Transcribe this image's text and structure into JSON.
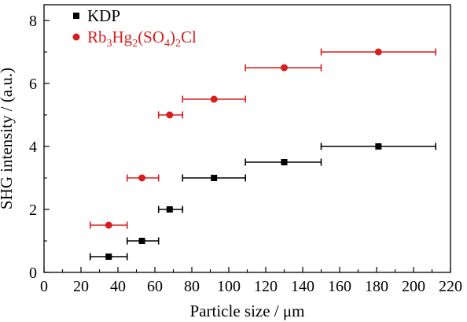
{
  "chart_data": {
    "type": "scatter",
    "xlabel": "Particle size / μm",
    "ylabel": "SHG intensity / (a.u.)",
    "xlim": [
      0,
      220
    ],
    "ylim": [
      0,
      8.5
    ],
    "x_ticks": [
      "0",
      "20",
      "40",
      "60",
      "80",
      "100",
      "120",
      "140",
      "160",
      "180",
      "200",
      "220"
    ],
    "y_ticks": [
      "0",
      "2",
      "4",
      "6",
      "8"
    ],
    "legend_position": "top-left",
    "grid": false,
    "series": [
      {
        "name": "KDP",
        "marker": "square",
        "color": "#000000",
        "points": [
          {
            "x": 35,
            "y": 0.5,
            "xmin": 25,
            "xmax": 45
          },
          {
            "x": 53,
            "y": 1.0,
            "xmin": 45,
            "xmax": 62
          },
          {
            "x": 68,
            "y": 2.0,
            "xmin": 62,
            "xmax": 75
          },
          {
            "x": 92,
            "y": 3.0,
            "xmin": 75,
            "xmax": 109
          },
          {
            "x": 130,
            "y": 3.5,
            "xmin": 109,
            "xmax": 150
          },
          {
            "x": 181,
            "y": 4.0,
            "xmin": 150,
            "xmax": 212
          }
        ]
      },
      {
        "name": "Rb3Hg2(SO4)2Cl",
        "label_parts": [
          {
            "t": "Rb",
            "sub": false
          },
          {
            "t": "3",
            "sub": true
          },
          {
            "t": "Hg",
            "sub": false
          },
          {
            "t": "2",
            "sub": true
          },
          {
            "t": "(SO",
            "sub": false
          },
          {
            "t": "4",
            "sub": true
          },
          {
            "t": ")",
            "sub": false
          },
          {
            "t": "2",
            "sub": true
          },
          {
            "t": "Cl",
            "sub": false
          }
        ],
        "marker": "circle",
        "color": "#d81e1e",
        "points": [
          {
            "x": 35,
            "y": 1.5,
            "xmin": 25,
            "xmax": 45
          },
          {
            "x": 53,
            "y": 3.0,
            "xmin": 45,
            "xmax": 62
          },
          {
            "x": 68,
            "y": 5.0,
            "xmin": 62,
            "xmax": 75
          },
          {
            "x": 92,
            "y": 5.5,
            "xmin": 75,
            "xmax": 109
          },
          {
            "x": 130,
            "y": 6.5,
            "xmin": 109,
            "xmax": 150
          },
          {
            "x": 181,
            "y": 7.0,
            "xmin": 150,
            "xmax": 212
          }
        ]
      }
    ]
  }
}
